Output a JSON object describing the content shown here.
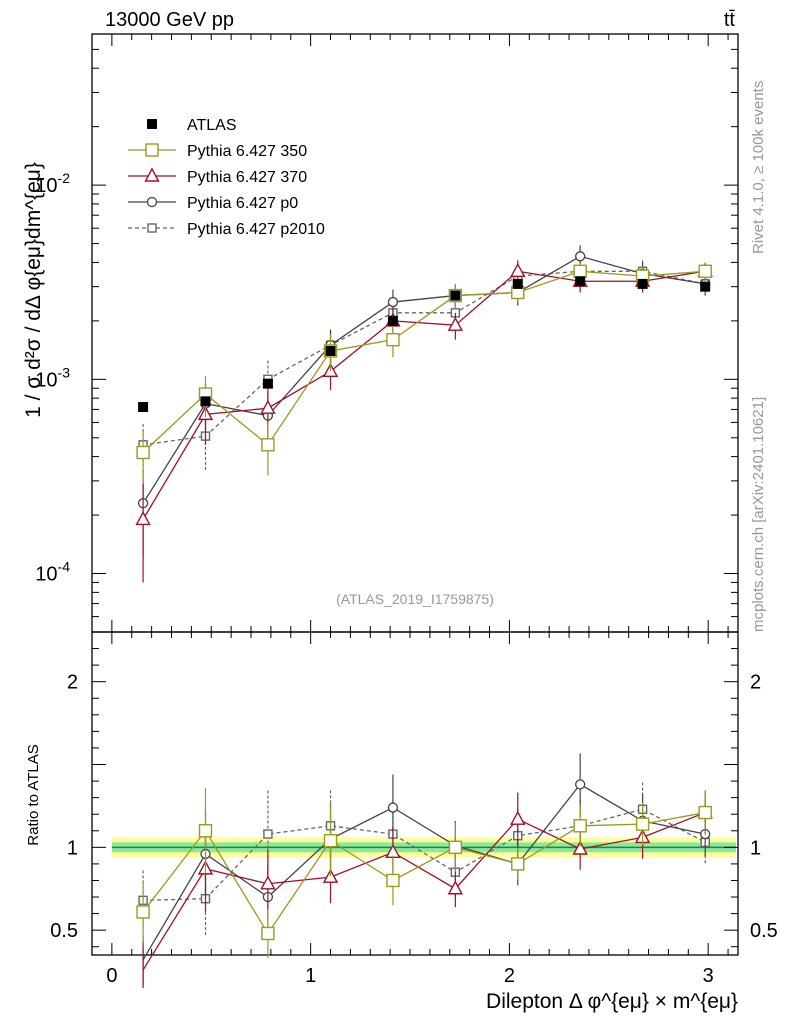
{
  "header": {
    "energy_label": "13000 GeV pp",
    "process_label": "tt̄"
  },
  "side_labels": {
    "rivet": "Rivet 4.1.0, ≥ 100k events",
    "mcplots": "mcplots.cern.ch [arXiv:2401.10621]"
  },
  "colors": {
    "atlas": "#000000",
    "p350": "#9a9a1e",
    "p370": "#a0102a",
    "p0": "#444444",
    "p2010": "#666666",
    "band_inner": "#8ce8a0",
    "band_outer": "#ffff99",
    "ratio_line": "#1a8c2a"
  },
  "chart_data": {
    "type": "scatter",
    "title": "",
    "analysis_id": "(ATLAS_2019_I1759875)",
    "ylabel": "1 / σ  d²σ / dΔ φ{eμ}dm^{eμ}",
    "xlabel": "Dilepton Δ φ^{eμ} × m^{eμ}",
    "ratio_ylabel": "Ratio to ATLAS",
    "xlim": [
      -0.1,
      3.15
    ],
    "ylim": [
      5e-05,
      0.06
    ],
    "yscale": "log",
    "ratio_ylim": [
      0.35,
      2.3
    ],
    "x_ticks": [
      "0",
      "1",
      "2",
      "3"
    ],
    "y_ticks": [
      "10^-4",
      "10^-3",
      "10^-2"
    ],
    "ratio_y_ticks": [
      "0.5",
      "1",
      "2"
    ],
    "x": [
      0.157,
      0.471,
      0.785,
      1.1,
      1.414,
      1.728,
      2.042,
      2.356,
      2.67,
      2.985
    ],
    "series": [
      {
        "name": "ATLAS",
        "key": "atlas",
        "marker": "filled-square",
        "line": "none",
        "values": [
          0.00072,
          0.00077,
          0.00095,
          0.0014,
          0.002,
          0.0027,
          0.0031,
          0.0032,
          0.0031,
          0.003
        ],
        "errors": [
          4e-05,
          4e-05,
          5e-05,
          7e-05,
          0.0001,
          0.00013,
          0.00015,
          0.00015,
          0.00015,
          0.00015
        ],
        "ratio": [
          1,
          1,
          1,
          1,
          1,
          1,
          1,
          1,
          1,
          1
        ]
      },
      {
        "name": "Pythia 6.427 350",
        "key": "p350",
        "marker": "open-square",
        "line": "solid",
        "values": [
          0.00042,
          0.00084,
          0.00046,
          0.0014,
          0.0016,
          0.0027,
          0.0028,
          0.0036,
          0.0034,
          0.0036
        ],
        "errors": [
          0.00013,
          0.0002,
          0.00014,
          0.0003,
          0.0003,
          0.0004,
          0.0003,
          0.0004,
          0.0004,
          0.0004
        ],
        "ratio": [
          0.61,
          1.1,
          0.48,
          1.04,
          0.8,
          1.0,
          0.9,
          1.13,
          1.14,
          1.21
        ]
      },
      {
        "name": "Pythia 6.427 370",
        "key": "p370",
        "marker": "open-triangle",
        "line": "solid",
        "values": [
          0.00019,
          0.00066,
          0.00071,
          0.0011,
          0.002,
          0.0019,
          0.0036,
          0.0032,
          0.0032,
          0.0036
        ],
        "errors": [
          0.0001,
          0.0002,
          0.0002,
          0.00022,
          0.0003,
          0.0003,
          0.0005,
          0.0004,
          0.0004,
          0.0004
        ],
        "ratio": [
          0.26,
          0.87,
          0.78,
          0.82,
          0.97,
          0.75,
          1.17,
          0.99,
          1.06,
          1.21
        ]
      },
      {
        "name": "Pythia 6.427 p0",
        "key": "p0",
        "marker": "open-circle",
        "line": "solid",
        "values": [
          0.00023,
          0.00075,
          0.00065,
          0.0015,
          0.0025,
          0.0027,
          0.0028,
          0.0043,
          0.0035,
          0.0031
        ],
        "errors": [
          0.00011,
          0.0002,
          0.00019,
          0.0003,
          0.0004,
          0.0004,
          0.0004,
          0.0006,
          0.0005,
          0.0004
        ],
        "ratio": [
          0.32,
          0.96,
          0.7,
          1.05,
          1.24,
          1.01,
          0.9,
          1.38,
          1.16,
          1.08
        ]
      },
      {
        "name": "Pythia 6.427 p2010",
        "key": "p2010",
        "marker": "open-square-small",
        "line": "dashed",
        "values": [
          0.00046,
          0.00051,
          0.001,
          0.0015,
          0.0022,
          0.0022,
          0.0034,
          0.0036,
          0.0036,
          0.0031
        ],
        "errors": [
          0.00013,
          0.00017,
          0.00025,
          0.0003,
          0.0004,
          0.0004,
          0.0005,
          0.0005,
          0.0005,
          0.0004
        ],
        "ratio": [
          0.68,
          0.69,
          1.08,
          1.13,
          1.08,
          0.85,
          1.07,
          1.13,
          1.23,
          1.03
        ]
      }
    ],
    "ratio_band_inner": 0.03,
    "ratio_band_outer": 0.06
  }
}
